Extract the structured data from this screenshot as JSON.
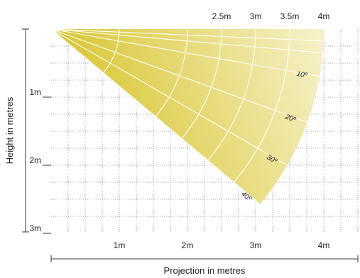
{
  "diagram": {
    "y_axis_label": "Height in metres",
    "x_axis_label": "Projection in metres",
    "fill_color_start": "#d4c01c",
    "fill_color_end": "#f6f1c8",
    "grid_color": "#888888",
    "line_color": "#ffffff",
    "height_ticks": [
      {
        "value": 1,
        "label": "1m"
      },
      {
        "value": 2,
        "label": "2m"
      },
      {
        "value": 3,
        "label": "3m"
      }
    ],
    "projection_ticks": [
      {
        "value": 1,
        "label": "1m"
      },
      {
        "value": 2,
        "label": "2m"
      },
      {
        "value": 3,
        "label": "3m"
      },
      {
        "value": 4,
        "label": "4m"
      }
    ],
    "arc_distances": [
      {
        "value": 2.5,
        "label": "2.5m"
      },
      {
        "value": 3,
        "label": "3m"
      },
      {
        "value": 3.5,
        "label": "3.5m"
      },
      {
        "value": 4,
        "label": "4m"
      }
    ],
    "inner_arcs": [
      1,
      2,
      2.5,
      3,
      3.5
    ],
    "beam_angles": [
      {
        "value": 10,
        "label": "10º"
      },
      {
        "value": 20,
        "label": "20º"
      },
      {
        "value": 30,
        "label": "30º"
      },
      {
        "value": 40,
        "label": "40º"
      }
    ],
    "extra_rays_deg": [
      2.5,
      5
    ],
    "max_distance": 4,
    "max_angle_deg": 50
  }
}
